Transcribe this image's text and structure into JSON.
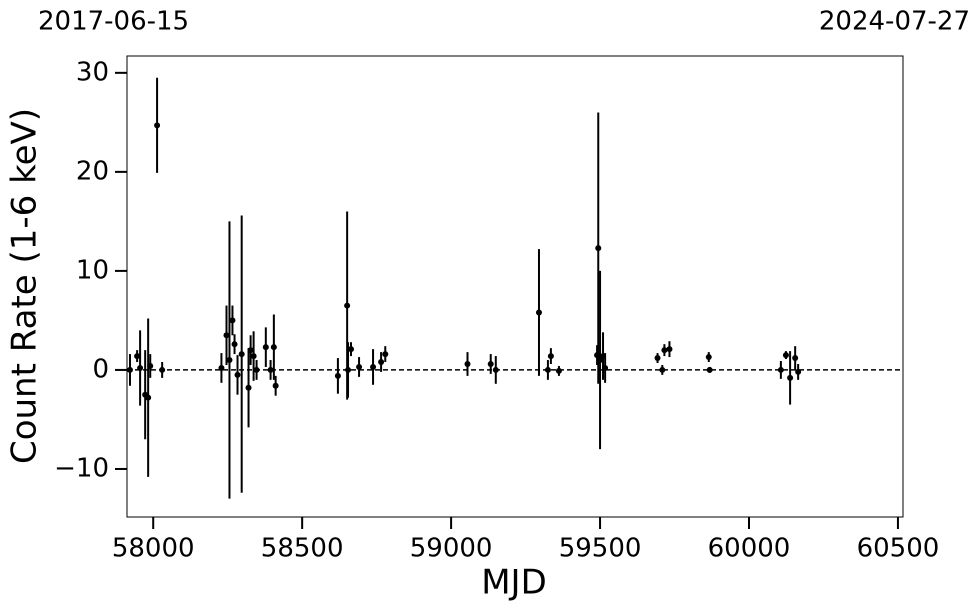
{
  "chart_data": {
    "type": "errorbar_scatter",
    "annotations": [
      "2017-06-15",
      "2024-07-27"
    ],
    "x_label": "MJD",
    "y_label": "Count Rate (1-6 keV)",
    "xlim": [
      57912,
      60517
    ],
    "ylim": [
      -14.85,
      31.7
    ],
    "xticks": [
      58000,
      58500,
      59000,
      59500,
      60000,
      60500
    ],
    "yticks": [
      {
        "value": -10,
        "label": "−10"
      },
      0,
      10,
      20,
      30
    ],
    "reference_line": 0,
    "color": "#000000",
    "x": [
      57922,
      57946,
      57956,
      57973,
      57983,
      57990,
      58013,
      58030,
      58229,
      58246,
      58256,
      58266,
      58273,
      58283,
      58297,
      58320,
      58327,
      58337,
      58347,
      58378,
      58394,
      58405,
      58411,
      58620,
      58651,
      58654,
      58664,
      58691,
      58738,
      58765,
      58779,
      59055,
      59133,
      59150,
      59295,
      59325,
      59335,
      59362,
      59490,
      59494,
      59500,
      59510,
      59517,
      59693,
      59709,
      59716,
      59733,
      59865,
      59868,
      60107,
      60124,
      60138,
      60155,
      60165
    ],
    "values": [
      0,
      1.4,
      0.2,
      -2.5,
      -2.8,
      0.4,
      24.7,
      0,
      0.2,
      3.5,
      1,
      5,
      2.6,
      -0.5,
      1.6,
      -1.8,
      2,
      1.4,
      0,
      2.3,
      0,
      2.3,
      -1.6,
      -0.6,
      6.5,
      0,
      2.1,
      0.3,
      0.3,
      0.8,
      1.6,
      0.6,
      0.6,
      0,
      5.8,
      0,
      1.4,
      -0.1,
      1.5,
      12.3,
      1,
      1.4,
      0.2,
      1.2,
      0,
      2,
      2.1,
      1.3,
      0,
      0,
      1.5,
      -0.8,
      1.2,
      -0.2
    ],
    "errors": [
      1.6,
      0.6,
      3.8,
      4.5,
      8,
      1.2,
      4.8,
      0.8,
      1.5,
      3,
      14,
      1.5,
      1,
      2,
      14,
      4,
      1.5,
      2.5,
      1,
      2,
      1,
      3.3,
      1,
      1.8,
      9.5,
      2.8,
      0.7,
      1,
      1.8,
      1,
      0.8,
      1.2,
      1,
      1.4,
      6.4,
      1,
      0.8,
      0.5,
      1,
      13.7,
      9,
      2.4,
      1.5,
      0.5,
      0.5,
      0.6,
      0.8,
      0.5,
      0.3,
      0.9,
      0.4,
      2.7,
      1.2,
      0.8
    ]
  }
}
